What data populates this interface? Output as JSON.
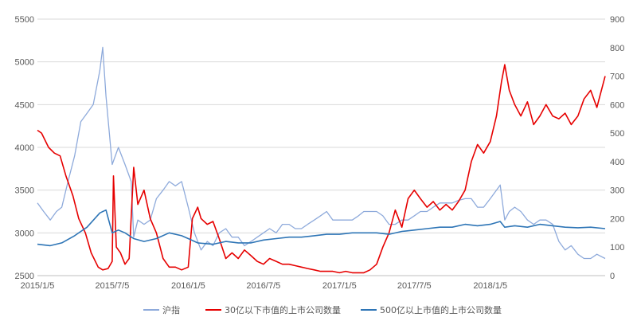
{
  "chart_data": {
    "type": "line",
    "x_ticks": [
      "2015/1/5",
      "2015/7/5",
      "2016/1/5",
      "2016/7/5",
      "2017/1/5",
      "2017/7/5",
      "2018/1/5"
    ],
    "x_range": [
      "2015-01-05",
      "2018-10-10"
    ],
    "y_left": {
      "ticks": [
        2500,
        3000,
        3500,
        4000,
        4500,
        5000,
        5500
      ],
      "ylim": [
        2500,
        5500
      ]
    },
    "y_right": {
      "ticks": [
        0,
        100,
        200,
        300,
        400,
        500,
        600,
        700,
        800,
        900
      ],
      "ylim": [
        0,
        900
      ]
    },
    "grid": "horizontal",
    "legend_position": "bottom",
    "series": [
      {
        "name": "沪指",
        "axis": "left",
        "color": "#8eaadb",
        "points": [
          [
            "2015-01-05",
            3350
          ],
          [
            "2015-01-20",
            3250
          ],
          [
            "2015-02-05",
            3150
          ],
          [
            "2015-02-20",
            3250
          ],
          [
            "2015-03-05",
            3300
          ],
          [
            "2015-03-20",
            3600
          ],
          [
            "2015-04-05",
            3900
          ],
          [
            "2015-04-20",
            4300
          ],
          [
            "2015-05-05",
            4400
          ],
          [
            "2015-05-20",
            4500
          ],
          [
            "2015-06-05",
            4900
          ],
          [
            "2015-06-12",
            5170
          ],
          [
            "2015-06-20",
            4600
          ],
          [
            "2015-07-05",
            3800
          ],
          [
            "2015-07-20",
            4000
          ],
          [
            "2015-08-05",
            3800
          ],
          [
            "2015-08-20",
            3600
          ],
          [
            "2015-08-26",
            2950
          ],
          [
            "2015-09-05",
            3150
          ],
          [
            "2015-09-20",
            3100
          ],
          [
            "2015-10-05",
            3150
          ],
          [
            "2015-10-20",
            3400
          ],
          [
            "2015-11-05",
            3500
          ],
          [
            "2015-11-20",
            3600
          ],
          [
            "2015-12-05",
            3550
          ],
          [
            "2015-12-20",
            3600
          ],
          [
            "2016-01-05",
            3300
          ],
          [
            "2016-01-20",
            3000
          ],
          [
            "2016-02-05",
            2800
          ],
          [
            "2016-02-20",
            2900
          ],
          [
            "2016-03-05",
            2850
          ],
          [
            "2016-03-20",
            3000
          ],
          [
            "2016-04-05",
            3050
          ],
          [
            "2016-04-20",
            2950
          ],
          [
            "2016-05-05",
            2950
          ],
          [
            "2016-05-20",
            2850
          ],
          [
            "2016-06-05",
            2900
          ],
          [
            "2016-06-20",
            2950
          ],
          [
            "2016-07-05",
            3000
          ],
          [
            "2016-07-20",
            3050
          ],
          [
            "2016-08-05",
            3000
          ],
          [
            "2016-08-20",
            3100
          ],
          [
            "2016-09-05",
            3100
          ],
          [
            "2016-09-20",
            3050
          ],
          [
            "2016-10-05",
            3050
          ],
          [
            "2016-10-20",
            3100
          ],
          [
            "2016-11-05",
            3150
          ],
          [
            "2016-11-20",
            3200
          ],
          [
            "2016-12-05",
            3250
          ],
          [
            "2016-12-20",
            3150
          ],
          [
            "2017-01-05",
            3150
          ],
          [
            "2017-01-20",
            3150
          ],
          [
            "2017-02-05",
            3150
          ],
          [
            "2017-02-20",
            3200
          ],
          [
            "2017-03-05",
            3250
          ],
          [
            "2017-03-20",
            3250
          ],
          [
            "2017-04-05",
            3250
          ],
          [
            "2017-04-20",
            3200
          ],
          [
            "2017-05-05",
            3100
          ],
          [
            "2017-05-20",
            3100
          ],
          [
            "2017-06-05",
            3150
          ],
          [
            "2017-06-20",
            3150
          ],
          [
            "2017-07-05",
            3200
          ],
          [
            "2017-07-20",
            3250
          ],
          [
            "2017-08-05",
            3250
          ],
          [
            "2017-08-20",
            3300
          ],
          [
            "2017-09-05",
            3350
          ],
          [
            "2017-09-20",
            3350
          ],
          [
            "2017-10-05",
            3350
          ],
          [
            "2017-10-20",
            3380
          ],
          [
            "2017-11-05",
            3400
          ],
          [
            "2017-11-20",
            3400
          ],
          [
            "2017-12-05",
            3300
          ],
          [
            "2017-12-20",
            3300
          ],
          [
            "2018-01-05",
            3400
          ],
          [
            "2018-01-20",
            3500
          ],
          [
            "2018-01-29",
            3560
          ],
          [
            "2018-02-09",
            3150
          ],
          [
            "2018-02-20",
            3250
          ],
          [
            "2018-03-05",
            3300
          ],
          [
            "2018-03-20",
            3250
          ],
          [
            "2018-04-05",
            3150
          ],
          [
            "2018-04-20",
            3100
          ],
          [
            "2018-05-05",
            3150
          ],
          [
            "2018-05-20",
            3150
          ],
          [
            "2018-06-05",
            3100
          ],
          [
            "2018-06-20",
            2900
          ],
          [
            "2018-07-05",
            2800
          ],
          [
            "2018-07-20",
            2850
          ],
          [
            "2018-08-05",
            2750
          ],
          [
            "2018-08-20",
            2700
          ],
          [
            "2018-09-05",
            2700
          ],
          [
            "2018-09-20",
            2750
          ],
          [
            "2018-10-10",
            2700
          ]
        ]
      },
      {
        "name": "30亿以下市值的上市公司数量",
        "axis": "right",
        "color": "#e60000",
        "points": [
          [
            "2015-01-05",
            510
          ],
          [
            "2015-01-15",
            500
          ],
          [
            "2015-02-01",
            450
          ],
          [
            "2015-02-15",
            430
          ],
          [
            "2015-03-01",
            420
          ],
          [
            "2015-03-15",
            350
          ],
          [
            "2015-04-01",
            280
          ],
          [
            "2015-04-15",
            200
          ],
          [
            "2015-05-01",
            150
          ],
          [
            "2015-05-15",
            80
          ],
          [
            "2015-06-01",
            30
          ],
          [
            "2015-06-12",
            20
          ],
          [
            "2015-06-25",
            25
          ],
          [
            "2015-07-05",
            50
          ],
          [
            "2015-07-08",
            350
          ],
          [
            "2015-07-15",
            100
          ],
          [
            "2015-07-25",
            80
          ],
          [
            "2015-08-05",
            40
          ],
          [
            "2015-08-15",
            60
          ],
          [
            "2015-08-26",
            380
          ],
          [
            "2015-09-05",
            250
          ],
          [
            "2015-09-20",
            300
          ],
          [
            "2015-10-05",
            200
          ],
          [
            "2015-10-20",
            150
          ],
          [
            "2015-11-05",
            60
          ],
          [
            "2015-11-20",
            30
          ],
          [
            "2015-12-05",
            30
          ],
          [
            "2015-12-20",
            20
          ],
          [
            "2016-01-05",
            30
          ],
          [
            "2016-01-15",
            200
          ],
          [
            "2016-01-28",
            240
          ],
          [
            "2016-02-05",
            200
          ],
          [
            "2016-02-20",
            180
          ],
          [
            "2016-03-05",
            190
          ],
          [
            "2016-03-20",
            130
          ],
          [
            "2016-04-05",
            60
          ],
          [
            "2016-04-20",
            80
          ],
          [
            "2016-05-05",
            60
          ],
          [
            "2016-05-20",
            90
          ],
          [
            "2016-06-05",
            70
          ],
          [
            "2016-06-20",
            50
          ],
          [
            "2016-07-05",
            40
          ],
          [
            "2016-07-20",
            60
          ],
          [
            "2016-08-05",
            50
          ],
          [
            "2016-08-20",
            40
          ],
          [
            "2016-09-05",
            40
          ],
          [
            "2016-09-20",
            35
          ],
          [
            "2016-10-05",
            30
          ],
          [
            "2016-10-20",
            25
          ],
          [
            "2016-11-05",
            20
          ],
          [
            "2016-11-20",
            15
          ],
          [
            "2016-12-05",
            15
          ],
          [
            "2016-12-20",
            15
          ],
          [
            "2017-01-05",
            10
          ],
          [
            "2017-01-20",
            15
          ],
          [
            "2017-02-05",
            10
          ],
          [
            "2017-02-20",
            10
          ],
          [
            "2017-03-05",
            10
          ],
          [
            "2017-03-20",
            20
          ],
          [
            "2017-04-05",
            40
          ],
          [
            "2017-04-20",
            100
          ],
          [
            "2017-05-05",
            150
          ],
          [
            "2017-05-20",
            230
          ],
          [
            "2017-06-05",
            170
          ],
          [
            "2017-06-20",
            270
          ],
          [
            "2017-07-05",
            300
          ],
          [
            "2017-07-20",
            270
          ],
          [
            "2017-08-05",
            240
          ],
          [
            "2017-08-20",
            260
          ],
          [
            "2017-09-05",
            230
          ],
          [
            "2017-09-20",
            250
          ],
          [
            "2017-10-05",
            230
          ],
          [
            "2017-10-20",
            260
          ],
          [
            "2017-11-05",
            300
          ],
          [
            "2017-11-20",
            400
          ],
          [
            "2017-12-05",
            460
          ],
          [
            "2017-12-20",
            430
          ],
          [
            "2018-01-05",
            470
          ],
          [
            "2018-01-20",
            560
          ],
          [
            "2018-02-01",
            680
          ],
          [
            "2018-02-09",
            740
          ],
          [
            "2018-02-20",
            650
          ],
          [
            "2018-03-05",
            600
          ],
          [
            "2018-03-20",
            560
          ],
          [
            "2018-04-05",
            610
          ],
          [
            "2018-04-20",
            530
          ],
          [
            "2018-05-05",
            560
          ],
          [
            "2018-05-20",
            600
          ],
          [
            "2018-06-05",
            560
          ],
          [
            "2018-06-20",
            550
          ],
          [
            "2018-07-05",
            570
          ],
          [
            "2018-07-20",
            530
          ],
          [
            "2018-08-05",
            560
          ],
          [
            "2018-08-20",
            620
          ],
          [
            "2018-09-05",
            650
          ],
          [
            "2018-09-20",
            590
          ],
          [
            "2018-10-10",
            700
          ]
        ]
      },
      {
        "name": "500亿以上市值的上市公司数量",
        "axis": "right",
        "color": "#2e75b6",
        "points": [
          [
            "2015-01-05",
            110
          ],
          [
            "2015-02-05",
            105
          ],
          [
            "2015-03-05",
            115
          ],
          [
            "2015-04-05",
            140
          ],
          [
            "2015-05-05",
            170
          ],
          [
            "2015-06-05",
            220
          ],
          [
            "2015-06-20",
            230
          ],
          [
            "2015-07-05",
            150
          ],
          [
            "2015-07-20",
            160
          ],
          [
            "2015-08-05",
            150
          ],
          [
            "2015-08-26",
            130
          ],
          [
            "2015-09-20",
            120
          ],
          [
            "2015-10-20",
            130
          ],
          [
            "2015-11-20",
            150
          ],
          [
            "2015-12-20",
            140
          ],
          [
            "2016-01-05",
            130
          ],
          [
            "2016-01-28",
            115
          ],
          [
            "2016-03-05",
            110
          ],
          [
            "2016-04-05",
            120
          ],
          [
            "2016-05-05",
            115
          ],
          [
            "2016-06-05",
            115
          ],
          [
            "2016-07-05",
            125
          ],
          [
            "2016-08-05",
            130
          ],
          [
            "2016-09-05",
            135
          ],
          [
            "2016-10-05",
            135
          ],
          [
            "2016-11-05",
            140
          ],
          [
            "2016-12-05",
            145
          ],
          [
            "2017-01-05",
            145
          ],
          [
            "2017-02-05",
            150
          ],
          [
            "2017-03-05",
            150
          ],
          [
            "2017-04-05",
            150
          ],
          [
            "2017-05-05",
            145
          ],
          [
            "2017-06-05",
            155
          ],
          [
            "2017-07-05",
            160
          ],
          [
            "2017-08-05",
            165
          ],
          [
            "2017-09-05",
            170
          ],
          [
            "2017-10-05",
            170
          ],
          [
            "2017-11-05",
            180
          ],
          [
            "2017-12-05",
            175
          ],
          [
            "2018-01-05",
            180
          ],
          [
            "2018-01-29",
            190
          ],
          [
            "2018-02-09",
            170
          ],
          [
            "2018-03-05",
            175
          ],
          [
            "2018-04-05",
            170
          ],
          [
            "2018-05-05",
            180
          ],
          [
            "2018-06-05",
            175
          ],
          [
            "2018-07-05",
            170
          ],
          [
            "2018-08-05",
            168
          ],
          [
            "2018-09-05",
            170
          ],
          [
            "2018-10-10",
            165
          ]
        ]
      }
    ]
  }
}
